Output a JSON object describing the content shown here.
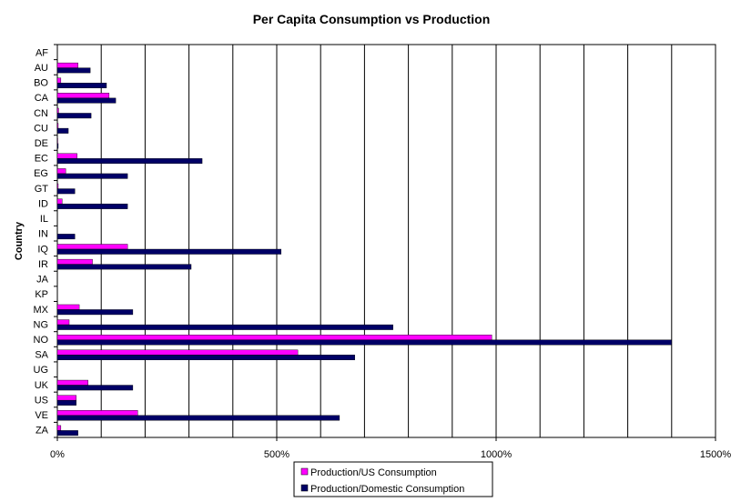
{
  "chart_data": {
    "type": "bar",
    "orientation": "horizontal",
    "title": "Per Capita Consumption vs Production",
    "ylabel": "Country",
    "xlabel": "",
    "x_tick_labels": [
      "0%",
      "500%",
      "1000%",
      "1500%"
    ],
    "x_ticks": [
      0,
      500,
      1000,
      1500
    ],
    "xlim": [
      0,
      1500
    ],
    "x_unit": "%",
    "x_gridlines_every": 100,
    "grid": true,
    "legend_position": "bottom",
    "categories": [
      "AF",
      "AU",
      "BO",
      "CA",
      "CN",
      "CU",
      "DE",
      "EC",
      "EG",
      "GT",
      "ID",
      "IL",
      "IN",
      "IQ",
      "IR",
      "JA",
      "KP",
      "MX",
      "NG",
      "NO",
      "SA",
      "UG",
      "UK",
      "US",
      "VE",
      "ZA"
    ],
    "series": [
      {
        "name": "Production/US Consumption",
        "color": "#ff00ff",
        "values": [
          0,
          47,
          8,
          118,
          3,
          2,
          1,
          45,
          19,
          2,
          11,
          0,
          0,
          160,
          80,
          0,
          0,
          50,
          27,
          990,
          548,
          0,
          70,
          43,
          183,
          8
        ]
      },
      {
        "name": "Production/Domestic Consumption",
        "color": "#000066",
        "values": [
          0,
          75,
          112,
          133,
          77,
          25,
          2,
          330,
          160,
          40,
          160,
          0,
          40,
          510,
          305,
          0,
          0,
          172,
          765,
          1400,
          678,
          0,
          172,
          43,
          643,
          47
        ]
      }
    ]
  }
}
